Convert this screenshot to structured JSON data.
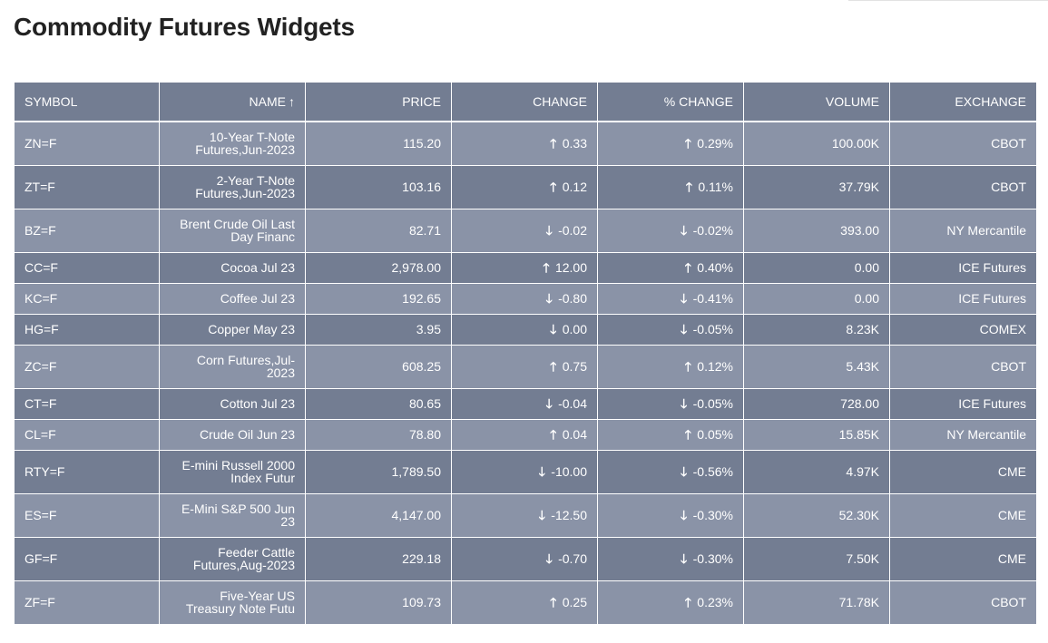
{
  "page": {
    "title": "Commodity Futures Widgets"
  },
  "table": {
    "columns": {
      "symbol": "SYMBOL",
      "name": "NAME",
      "name_sort_glyph": "↑",
      "price": "PRICE",
      "change": "CHANGE",
      "pct_change": "% CHANGE",
      "volume": "VOLUME",
      "exchange": "EXCHANGE"
    },
    "rows": [
      {
        "symbol": "ZN=F",
        "name": "10-Year T-Note Futures,Jun-2023",
        "price": "115.20",
        "change_dir": "up",
        "change": "0.33",
        "pct_dir": "up",
        "pct": "0.29%",
        "volume": "100.00K",
        "exchange": "CBOT"
      },
      {
        "symbol": "ZT=F",
        "name": "2-Year T-Note Futures,Jun-2023",
        "price": "103.16",
        "change_dir": "up",
        "change": "0.12",
        "pct_dir": "up",
        "pct": "0.11%",
        "volume": "37.79K",
        "exchange": "CBOT"
      },
      {
        "symbol": "BZ=F",
        "name": "Brent Crude Oil Last Day Financ",
        "price": "82.71",
        "change_dir": "down",
        "change": "-0.02",
        "pct_dir": "down",
        "pct": "-0.02%",
        "volume": "393.00",
        "exchange": "NY Mercantile"
      },
      {
        "symbol": "CC=F",
        "name": "Cocoa Jul 23",
        "price": "2,978.00",
        "change_dir": "up",
        "change": "12.00",
        "pct_dir": "up",
        "pct": "0.40%",
        "volume": "0.00",
        "exchange": "ICE Futures"
      },
      {
        "symbol": "KC=F",
        "name": "Coffee Jul 23",
        "price": "192.65",
        "change_dir": "down",
        "change": "-0.80",
        "pct_dir": "down",
        "pct": "-0.41%",
        "volume": "0.00",
        "exchange": "ICE Futures"
      },
      {
        "symbol": "HG=F",
        "name": "Copper May 23",
        "price": "3.95",
        "change_dir": "down",
        "change": "0.00",
        "pct_dir": "down",
        "pct": "-0.05%",
        "volume": "8.23K",
        "exchange": "COMEX"
      },
      {
        "symbol": "ZC=F",
        "name": "Corn Futures,Jul-2023",
        "price": "608.25",
        "change_dir": "up",
        "change": "0.75",
        "pct_dir": "up",
        "pct": "0.12%",
        "volume": "5.43K",
        "exchange": "CBOT"
      },
      {
        "symbol": "CT=F",
        "name": "Cotton Jul 23",
        "price": "80.65",
        "change_dir": "down",
        "change": "-0.04",
        "pct_dir": "down",
        "pct": "-0.05%",
        "volume": "728.00",
        "exchange": "ICE Futures"
      },
      {
        "symbol": "CL=F",
        "name": "Crude Oil Jun 23",
        "price": "78.80",
        "change_dir": "up",
        "change": "0.04",
        "pct_dir": "up",
        "pct": "0.05%",
        "volume": "15.85K",
        "exchange": "NY Mercantile"
      },
      {
        "symbol": "RTY=F",
        "name": "E-mini Russell 2000 Index Futur",
        "price": "1,789.50",
        "change_dir": "down",
        "change": "-10.00",
        "pct_dir": "down",
        "pct": "-0.56%",
        "volume": "4.97K",
        "exchange": "CME"
      },
      {
        "symbol": "ES=F",
        "name": "E-Mini S&P 500 Jun 23",
        "price": "4,147.00",
        "change_dir": "down",
        "change": "-12.50",
        "pct_dir": "down",
        "pct": "-0.30%",
        "volume": "52.30K",
        "exchange": "CME"
      },
      {
        "symbol": "GF=F",
        "name": "Feeder Cattle Futures,Aug-2023",
        "price": "229.18",
        "change_dir": "down",
        "change": "-0.70",
        "pct_dir": "down",
        "pct": "-0.30%",
        "volume": "7.50K",
        "exchange": "CME"
      },
      {
        "symbol": "ZF=F",
        "name": "Five-Year US Treasury Note Futu",
        "price": "109.73",
        "change_dir": "up",
        "change": "0.25",
        "pct_dir": "up",
        "pct": "0.23%",
        "volume": "71.78K",
        "exchange": "CBOT"
      }
    ]
  },
  "icons": {
    "up": "🡑",
    "down": "🡓"
  },
  "colors": {
    "header_bg": "#737d92",
    "row_odd": "#8a93a7",
    "row_even": "#737d92",
    "text": "#ffffff",
    "title": "#222222"
  }
}
